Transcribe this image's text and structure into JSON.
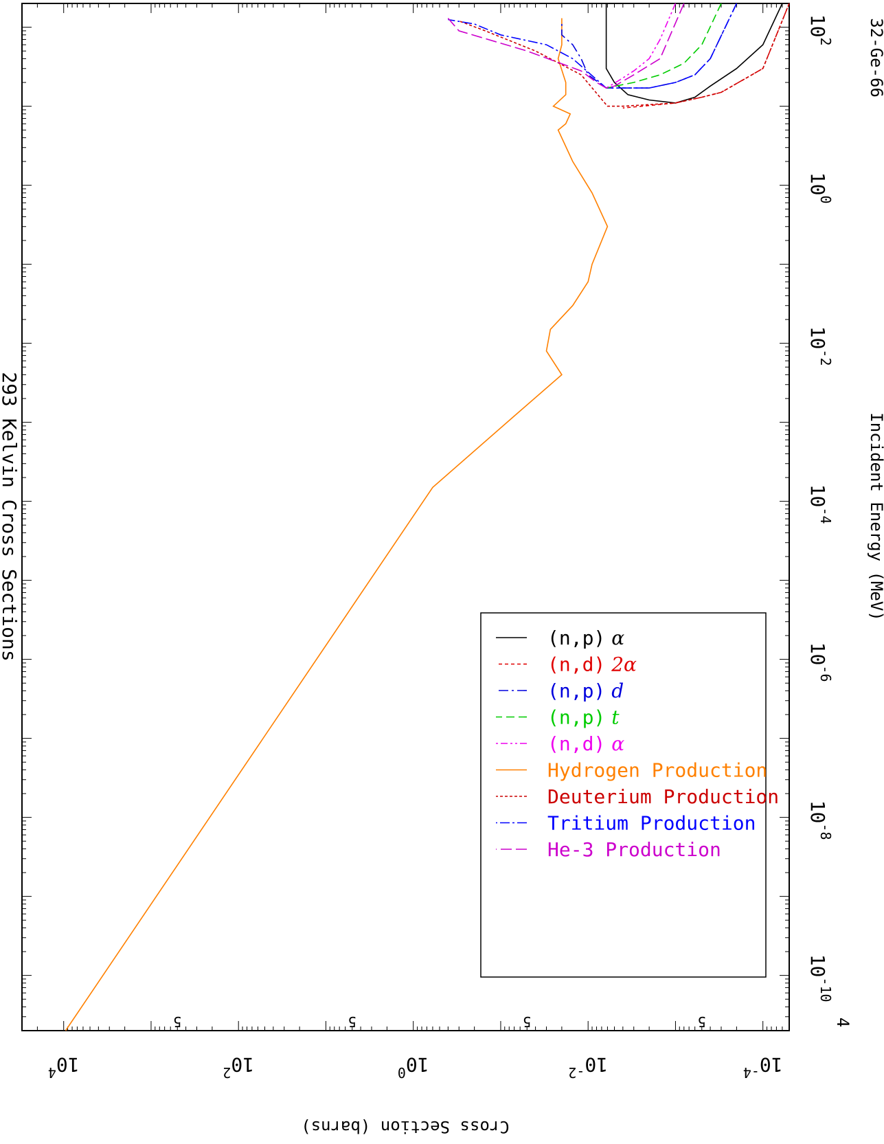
{
  "chart_data": {
    "type": "line",
    "title": "293 Kelvin Cross Sections",
    "xlabel": "Incident Energy (MeV)",
    "ylabel": "Cross Section (barns)",
    "corner_label": "32-Ge-66",
    "x_scale": "log",
    "y_scale": "log",
    "xlim": [
      2e-11,
      200
    ],
    "ylim": [
      5e-05,
      30000
    ],
    "x_ticks": [
      {
        "exp": "-10",
        "value": 1e-10
      },
      {
        "exp": "-8",
        "value": 1e-08
      },
      {
        "exp": "-6",
        "value": 1e-06
      },
      {
        "exp": "-4",
        "value": 0.0001
      },
      {
        "exp": "-2",
        "value": 0.01
      },
      {
        "exp": "0",
        "value": 1
      },
      {
        "exp": "2",
        "value": 100
      }
    ],
    "x_left_label": "4",
    "y_ticks": [
      {
        "exp": "-4",
        "value": 0.0001
      },
      {
        "exp": "-2",
        "value": 0.01
      },
      {
        "exp": "0",
        "value": 1
      },
      {
        "exp": "2",
        "value": 100
      },
      {
        "exp": "4",
        "value": 10000
      }
    ],
    "y_five_label": "5",
    "tick_base": "10",
    "grid": false,
    "legend_position": "lower-left",
    "legend": [
      {
        "label": "(n,p)",
        "suffix": "α",
        "color": "#000000",
        "suffix_color": "#000000",
        "dash": "none"
      },
      {
        "label": "(n,d)",
        "suffix": "2α",
        "color": "#e00000",
        "suffix_color": "#e00000",
        "dash": "5,4"
      },
      {
        "label": "(n,p)",
        "suffix": "d",
        "color": "#0000dd",
        "suffix_color": "#0000dd",
        "dash": "14,5,3,5"
      },
      {
        "label": "(n,p)",
        "suffix": "t",
        "color": "#00cc00",
        "suffix_color": "#00cc00",
        "dash": "12,6"
      },
      {
        "label": "(n,d)",
        "suffix": "α",
        "color": "#ee00ee",
        "suffix_color": "#ee00ee",
        "dash": "10,4,3,4,3,4"
      },
      {
        "label": "Hydrogen Production",
        "suffix": "",
        "color": "#ff8000",
        "suffix_color": "#ff8000",
        "dash": "none"
      },
      {
        "label": "Deuterium Production",
        "suffix": "",
        "color": "#cc0000",
        "suffix_color": "#cc0000",
        "dash": "4,3"
      },
      {
        "label": "Tritium Production",
        "suffix": "",
        "color": "#0000ff",
        "suffix_color": "#0000ff",
        "dash": "14,4,3,4"
      },
      {
        "label": "He-3 Production",
        "suffix": "",
        "color": "#cc00cc",
        "suffix_color": "#cc00cc",
        "dash": "16,6"
      }
    ],
    "series": [
      {
        "legend_index": 5,
        "x": [
          2e-11,
          0.00015,
          0.0012,
          0.004,
          0.008,
          0.015,
          0.03,
          0.06,
          0.1,
          0.3,
          0.8,
          2,
          5,
          6,
          8,
          10,
          14,
          20,
          40,
          60,
          130
        ],
        "y": [
          9500,
          0.6,
          0.07,
          0.02,
          0.03,
          0.027,
          0.015,
          0.01,
          0.009,
          0.006,
          0.009,
          0.015,
          0.022,
          0.018,
          0.016,
          0.025,
          0.018,
          0.018,
          0.022,
          0.02,
          0.02
        ]
      },
      {
        "legend_index": 0,
        "x": [
          200,
          30,
          20,
          14,
          12,
          11,
          13,
          18,
          30,
          60,
          200
        ],
        "y": [
          0.0062,
          0.0062,
          0.005,
          0.0035,
          0.002,
          0.001,
          0.0006,
          0.0004,
          0.0002,
          0.0001,
          6e-05
        ]
      },
      {
        "legend_index": 1,
        "x": [
          200,
          30,
          15,
          13,
          11,
          9.5
        ],
        "y": [
          5e-05,
          0.0001,
          0.0003,
          0.0005,
          0.001,
          0.004
        ]
      },
      {
        "legend_index": 6,
        "x": [
          200,
          30,
          15,
          13,
          11,
          10,
          10,
          25,
          50,
          90,
          120
        ],
        "y": [
          5e-05,
          0.0001,
          0.0003,
          0.0005,
          0.001,
          0.004,
          0.006,
          0.012,
          0.04,
          0.15,
          0.3
        ]
      },
      {
        "legend_index": 2,
        "x": [
          200,
          40,
          25,
          20,
          17,
          17,
          25,
          40,
          60,
          80,
          110
        ],
        "y": [
          0.0002,
          0.0004,
          0.0006,
          0.001,
          0.002,
          0.0062,
          0.01,
          0.012,
          0.015,
          0.02,
          0.02
        ]
      },
      {
        "legend_index": 7,
        "x": [
          200,
          40,
          25,
          20,
          17,
          17,
          40,
          60,
          80,
          110,
          125
        ],
        "y": [
          0.0002,
          0.0004,
          0.0006,
          0.001,
          0.002,
          0.0062,
          0.015,
          0.03,
          0.1,
          0.2,
          0.4
        ]
      },
      {
        "legend_index": 3,
        "x": [
          200,
          60,
          35,
          25,
          20,
          17
        ],
        "y": [
          0.0003,
          0.0005,
          0.0008,
          0.0015,
          0.003,
          0.0062
        ]
      },
      {
        "legend_index": 4,
        "x": [
          200,
          70,
          40,
          28,
          21,
          17
        ],
        "y": [
          0.001,
          0.0015,
          0.002,
          0.003,
          0.0045,
          0.0062
        ]
      },
      {
        "legend_index": 8,
        "x": [
          200,
          40,
          25,
          18,
          17,
          20,
          28,
          50,
          90,
          130
        ],
        "y": [
          0.0008,
          0.0015,
          0.003,
          0.005,
          0.0062,
          0.008,
          0.012,
          0.05,
          0.3,
          0.4
        ]
      }
    ]
  }
}
